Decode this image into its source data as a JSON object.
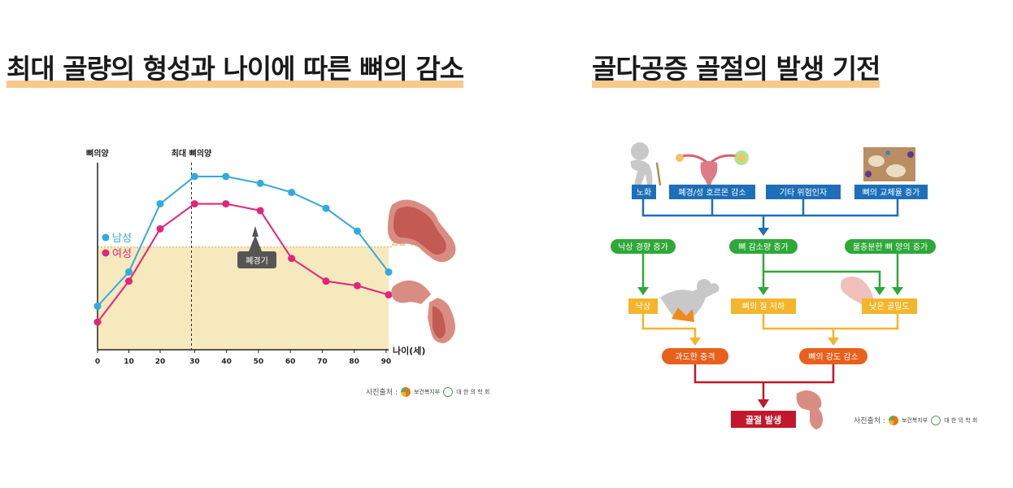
{
  "left_title": "최대 골량의 형성과 나이에 따른 뼈의 감소",
  "right_title": "골다공증 골절의 발생 기전",
  "chart_data": {
    "type": "line",
    "ylabel": "뼈의양",
    "xlabel": "나이(세)",
    "x_ticks": [
      "0",
      "10",
      "20",
      "30",
      "40",
      "50",
      "60",
      "70",
      "80",
      "90"
    ],
    "peak_label": "최대 뼈의양",
    "peak_age": 30,
    "xlim": [
      0,
      93
    ],
    "ylim": [
      0,
      100
    ],
    "fracture_threshold": 33,
    "fracture_threshold_label": "골절역치",
    "menopause_label": "폐경기",
    "series": [
      {
        "name": "남성",
        "color": "#33a9e0",
        "x": [
          0,
          10,
          20,
          31,
          41,
          52,
          62,
          73,
          83,
          93
        ],
        "y": [
          7,
          22,
          52,
          64,
          64,
          61,
          57,
          50,
          40,
          22
        ]
      },
      {
        "name": "여성",
        "color": "#e0257a",
        "x": [
          0,
          10,
          20,
          31,
          41,
          52,
          62,
          73,
          83,
          93
        ],
        "y": [
          0,
          18,
          41,
          52,
          52,
          49,
          28,
          18,
          16,
          12
        ]
      }
    ],
    "grid": false,
    "legend_position": "left"
  },
  "flow": {
    "causes": [
      "노화",
      "폐경/성 호르몬 감소",
      "기타 위험인자",
      "뼈의 교체율 증가"
    ],
    "green": [
      "낙상 경향 증가",
      "뼈 감소량 증가",
      "불충분한 뼈 양의 증가"
    ],
    "yellow": [
      "낙상",
      "뼈의 질 저하",
      "낮은 골밀도"
    ],
    "orange": [
      "과도한 충격",
      "뼈의 강도 감소"
    ],
    "result": "골절 발생"
  },
  "source": {
    "label": "사진출처 :",
    "org1": "보건복지부",
    "org2": "대 한 의 학 회"
  },
  "colors": {
    "title_underline": "#f7c98b",
    "blue_box": "#1c6fb8",
    "green_box": "#2fa83a",
    "yellow_box": "#f3b52b",
    "orange_box": "#e8601c",
    "red_box": "#c2182d",
    "fracture_zone": "#f7e9be"
  }
}
